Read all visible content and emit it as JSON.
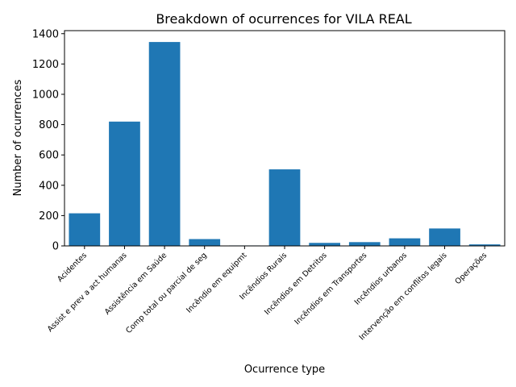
{
  "chart_data": {
    "type": "bar",
    "title": "Breakdown of ocurrences for VILA REAL",
    "xlabel": "Ocurrence type",
    "ylabel": "Number of ocurrences",
    "ylim": [
      0,
      1420
    ],
    "yticks": [
      0,
      200,
      400,
      600,
      800,
      1000,
      1200,
      1400
    ],
    "categories": [
      "Acidentes",
      "Assist e prev a act humanas",
      "Assistência em Saúde",
      "Comp total ou parcial de seg",
      "Incêndio em equipmt",
      "Incêndios Rurais",
      "Incêndios em Detritos",
      "Incêndios em Transportes",
      "Incêndios urbanos",
      "Intervenção em conflitos legais",
      "Operações"
    ],
    "values": [
      215,
      820,
      1345,
      45,
      3,
      505,
      20,
      25,
      50,
      115,
      10
    ],
    "bar_color": "#1f77b4",
    "grid": false,
    "legend": "none"
  }
}
